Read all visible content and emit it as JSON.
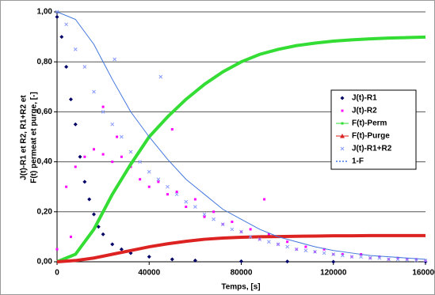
{
  "chart_data": {
    "type": "scatter",
    "ylabel": [
      "J(t)-R1 et R2, R1+R2 et",
      "F(t) permeat et purge, [-]"
    ],
    "xlabel": "Temps, [s]",
    "xlim": [
      0,
      160000
    ],
    "xticks": [
      0,
      40000,
      80000,
      120000,
      160000
    ],
    "ylim": [
      0,
      1
    ],
    "yticks": [
      {
        "value": 0,
        "label": "0,00"
      },
      {
        "value": 0.2,
        "label": "0,20"
      },
      {
        "value": 0.4,
        "label": "0,40"
      },
      {
        "value": 0.6,
        "label": "0,60"
      },
      {
        "value": 0.8,
        "label": "0,80"
      },
      {
        "value": 1,
        "label": "1,00"
      }
    ],
    "grid": true,
    "legend": "right",
    "series": [
      {
        "name": "J(t)-R1",
        "color": "#000066",
        "marker": "diamond",
        "line_width": 0,
        "x": [
          0,
          2000,
          4000,
          6000,
          8000,
          10000,
          12000,
          14000,
          16000,
          18000,
          20000,
          24000,
          28000,
          32000,
          40000,
          50000,
          60000,
          80000,
          100000,
          120000,
          160000
        ],
        "values": [
          0.98,
          0.9,
          0.78,
          0.65,
          0.55,
          0.42,
          0.32,
          0.25,
          0.19,
          0.14,
          0.11,
          0.07,
          0.05,
          0.035,
          0.02,
          0.01,
          0.005,
          0.002,
          0.001,
          0,
          0
        ]
      },
      {
        "name": "J(t)-R2",
        "color": "#ff00ff",
        "marker": "square",
        "line_width": 0,
        "x": [
          0,
          4000,
          8000,
          12000,
          16000,
          20000,
          24000,
          28000,
          32000,
          36000,
          40000,
          44000,
          48000,
          52000,
          56000,
          60000,
          64000,
          68000,
          72000,
          76000,
          80000,
          84000,
          88000,
          92000,
          96000,
          100000,
          104000,
          108000,
          112000,
          116000,
          120000,
          124000,
          128000,
          132000,
          136000,
          140000,
          144000,
          148000,
          152000,
          156000,
          160000,
          20000,
          50000,
          90000,
          6000,
          26000
        ],
        "values": [
          0.05,
          0.3,
          0.38,
          0.42,
          0.45,
          0.43,
          0.4,
          0.42,
          0.38,
          0.33,
          0.3,
          0.32,
          0.27,
          0.28,
          0.22,
          0.25,
          0.18,
          0.2,
          0.15,
          0.16,
          0.12,
          0.13,
          0.09,
          0.11,
          0.07,
          0.08,
          0.05,
          0.06,
          0.04,
          0.05,
          0.03,
          0.03,
          0.02,
          0.03,
          0.015,
          0.02,
          0.01,
          0.015,
          0.01,
          0.01,
          0.005,
          0.62,
          0.53,
          0.25,
          0.1,
          0.5
        ]
      },
      {
        "name": "F(t)-Perm",
        "color": "#33dd33",
        "marker": "square",
        "line_width": 4,
        "x": [
          0,
          8000,
          16000,
          24000,
          32000,
          40000,
          48000,
          56000,
          64000,
          72000,
          80000,
          88000,
          96000,
          104000,
          112000,
          120000,
          128000,
          136000,
          144000,
          152000,
          160000
        ],
        "values": [
          0,
          0.03,
          0.13,
          0.27,
          0.39,
          0.5,
          0.58,
          0.65,
          0.71,
          0.76,
          0.8,
          0.83,
          0.85,
          0.865,
          0.875,
          0.883,
          0.888,
          0.892,
          0.895,
          0.897,
          0.899
        ]
      },
      {
        "name": "F(t)-Purge",
        "color": "#dd2222",
        "marker": "triangle",
        "line_width": 4,
        "x": [
          0,
          8000,
          16000,
          24000,
          32000,
          40000,
          48000,
          56000,
          64000,
          72000,
          80000,
          88000,
          96000,
          104000,
          112000,
          120000,
          128000,
          136000,
          144000,
          152000,
          160000
        ],
        "values": [
          0,
          0.005,
          0.015,
          0.03,
          0.045,
          0.06,
          0.072,
          0.082,
          0.09,
          0.095,
          0.098,
          0.1,
          0.101,
          0.102,
          0.103,
          0.104,
          0.104,
          0.105,
          0.105,
          0.105,
          0.105
        ]
      },
      {
        "name": "J(t)-R1+R2",
        "color": "#8899ff",
        "marker": "x",
        "line_width": 0,
        "x": [
          0,
          4000,
          8000,
          12000,
          16000,
          20000,
          24000,
          28000,
          32000,
          36000,
          40000,
          44000,
          48000,
          52000,
          56000,
          60000,
          64000,
          68000,
          72000,
          76000,
          80000,
          84000,
          88000,
          92000,
          96000,
          100000,
          104000,
          108000,
          112000,
          116000,
          120000,
          124000,
          128000,
          132000,
          136000,
          140000,
          144000,
          148000,
          152000,
          156000,
          160000,
          25000,
          45000
        ],
        "values": [
          1,
          0.95,
          0.85,
          0.78,
          0.68,
          0.6,
          0.55,
          0.5,
          0.44,
          0.4,
          0.36,
          0.33,
          0.3,
          0.27,
          0.24,
          0.22,
          0.19,
          0.17,
          0.15,
          0.13,
          0.12,
          0.1,
          0.09,
          0.08,
          0.07,
          0.06,
          0.05,
          0.045,
          0.04,
          0.035,
          0.03,
          0.025,
          0.02,
          0.02,
          0.015,
          0.015,
          0.01,
          0.01,
          0.008,
          0.006,
          0.005,
          0.81,
          0.74
        ]
      },
      {
        "name": "1-F",
        "color": "#4477dd",
        "marker": "dash",
        "line_width": 1,
        "x": [
          0,
          8000,
          16000,
          24000,
          32000,
          40000,
          48000,
          56000,
          64000,
          72000,
          80000,
          88000,
          96000,
          104000,
          112000,
          120000,
          128000,
          136000,
          144000,
          152000,
          160000
        ],
        "values": [
          1,
          0.97,
          0.87,
          0.73,
          0.6,
          0.5,
          0.41,
          0.33,
          0.27,
          0.21,
          0.17,
          0.13,
          0.1,
          0.08,
          0.06,
          0.045,
          0.035,
          0.025,
          0.02,
          0.015,
          0.01
        ]
      }
    ]
  }
}
